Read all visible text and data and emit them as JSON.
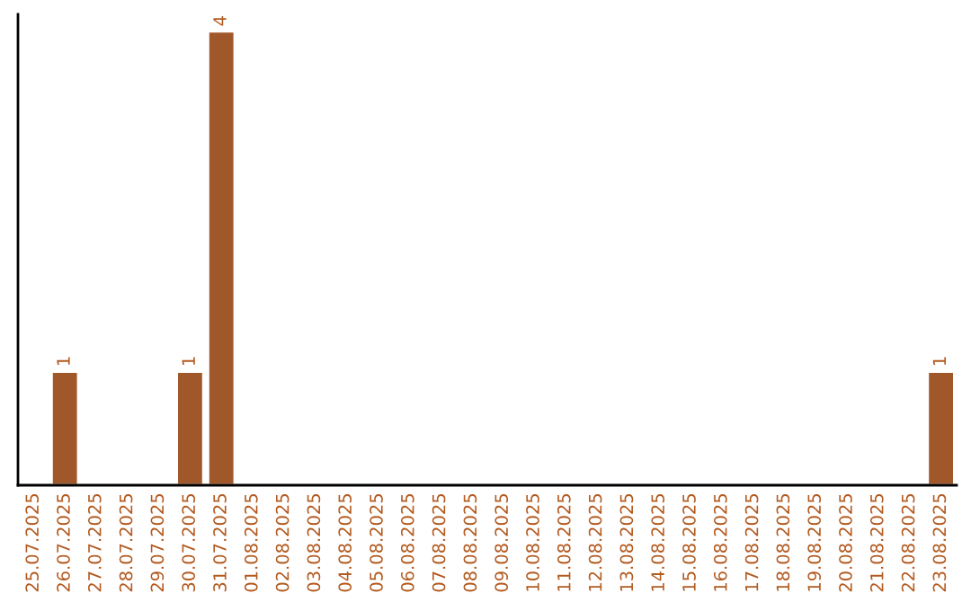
{
  "chart_data": {
    "type": "bar",
    "categories": [
      "25.07.2025",
      "26.07.2025",
      "27.07.2025",
      "28.07.2025",
      "29.07.2025",
      "30.07.2025",
      "31.07.2025",
      "01.08.2025",
      "02.08.2025",
      "03.08.2025",
      "04.08.2025",
      "05.08.2025",
      "06.08.2025",
      "07.08.2025",
      "08.08.2025",
      "09.08.2025",
      "10.08.2025",
      "11.08.2025",
      "12.08.2025",
      "13.08.2025",
      "14.08.2025",
      "15.08.2025",
      "16.08.2025",
      "17.08.2025",
      "18.08.2025",
      "19.08.2025",
      "20.08.2025",
      "21.08.2025",
      "22.08.2025",
      "23.08.2025"
    ],
    "values": [
      null,
      1,
      null,
      null,
      null,
      1,
      4,
      null,
      null,
      null,
      null,
      null,
      null,
      null,
      null,
      null,
      null,
      null,
      null,
      null,
      null,
      null,
      null,
      null,
      null,
      null,
      null,
      null,
      null,
      1
    ],
    "value_labels": [
      null,
      "1",
      null,
      null,
      null,
      "1",
      "4",
      null,
      null,
      null,
      null,
      null,
      null,
      null,
      null,
      null,
      null,
      null,
      null,
      null,
      null,
      null,
      null,
      null,
      null,
      null,
      null,
      null,
      null,
      "1"
    ],
    "color": "#a0582a",
    "ylim": [
      0,
      4.15
    ],
    "tick_labels": "x",
    "grid": false,
    "legend": false
  }
}
